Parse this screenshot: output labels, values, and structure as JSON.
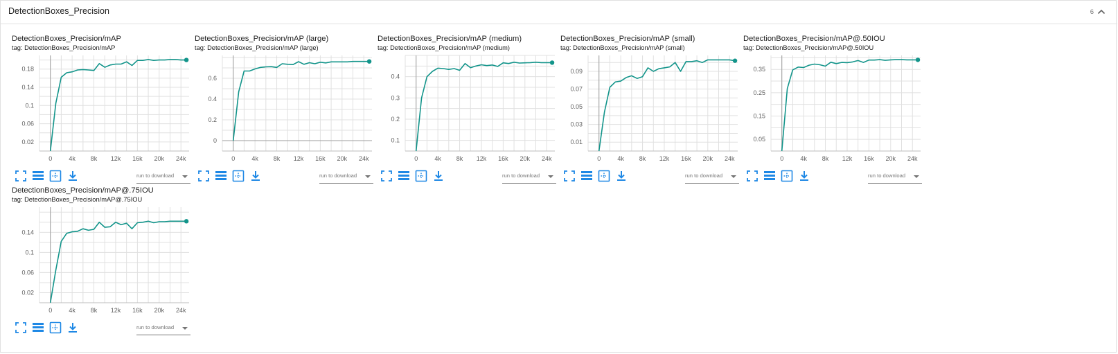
{
  "section": {
    "title": "DetectionBoxes_Precision",
    "card_count": "6"
  },
  "toolbar": {
    "run_select_placeholder": "run to download",
    "icons": [
      "fullscreen-icon",
      "data-table-icon",
      "fit-domain-icon",
      "download-icon"
    ]
  },
  "colors": {
    "series": "#12948a",
    "grid": "#e0e0e0",
    "accent": "#1e88e5"
  },
  "cards": [
    {
      "title": "DetectionBoxes_Precision/mAP",
      "tag": "tag: DetectionBoxes_Precision/mAP"
    },
    {
      "title": "DetectionBoxes_Precision/mAP (large)",
      "tag": "tag: DetectionBoxes_Precision/mAP (large)"
    },
    {
      "title": "DetectionBoxes_Precision/mAP (medium)",
      "tag": "tag: DetectionBoxes_Precision/mAP (medium)"
    },
    {
      "title": "DetectionBoxes_Precision/mAP (small)",
      "tag": "tag: DetectionBoxes_Precision/mAP (small)"
    },
    {
      "title": "DetectionBoxes_Precision/mAP@.50IOU",
      "tag": "tag: DetectionBoxes_Precision/mAP@.50IOU"
    },
    {
      "title": "DetectionBoxes_Precision/mAP@.75IOU",
      "tag": "tag: DetectionBoxes_Precision/mAP@.75IOU"
    }
  ],
  "chart_data": [
    {
      "type": "line",
      "xlim": [
        -2000,
        25500
      ],
      "ylim": [
        0,
        0.21
      ],
      "x_ticks": [
        0,
        4000,
        8000,
        12000,
        16000,
        20000,
        24000
      ],
      "x_tick_labels": [
        "0",
        "4k",
        "8k",
        "12k",
        "16k",
        "20k",
        "24k"
      ],
      "y_ticks": [
        0.02,
        0.06,
        0.1,
        0.14,
        0.18
      ],
      "y_tick_labels": [
        "0.02",
        "0.06",
        "0.1",
        "0.14",
        "0.18"
      ],
      "x": [
        0,
        1000,
        2000,
        3000,
        4000,
        5000,
        6000,
        7000,
        8000,
        9000,
        10000,
        11000,
        12000,
        13000,
        14000,
        15000,
        16000,
        17000,
        18000,
        19000,
        20000,
        21000,
        22000,
        23000,
        24000,
        25000
      ],
      "y": [
        0.0,
        0.105,
        0.162,
        0.172,
        0.174,
        0.178,
        0.179,
        0.178,
        0.177,
        0.192,
        0.184,
        0.189,
        0.191,
        0.191,
        0.196,
        0.188,
        0.199,
        0.199,
        0.201,
        0.199,
        0.2,
        0.2,
        0.201,
        0.201,
        0.2,
        0.2
      ]
    },
    {
      "type": "line",
      "xlim": [
        -2000,
        25500
      ],
      "ylim": [
        -0.1,
        0.82
      ],
      "x_ticks": [
        0,
        4000,
        8000,
        12000,
        16000,
        20000,
        24000
      ],
      "x_tick_labels": [
        "0",
        "4k",
        "8k",
        "12k",
        "16k",
        "20k",
        "24k"
      ],
      "y_ticks": [
        0,
        0.2,
        0.4,
        0.6
      ],
      "y_tick_labels": [
        "0",
        "0.2",
        "0.4",
        "0.6"
      ],
      "x": [
        0,
        1000,
        2000,
        3000,
        4000,
        5000,
        6000,
        7000,
        8000,
        9000,
        10000,
        11000,
        12000,
        13000,
        14000,
        15000,
        16000,
        17000,
        18000,
        19000,
        20000,
        21000,
        22000,
        23000,
        24000,
        25000
      ],
      "y": [
        0.0,
        0.47,
        0.67,
        0.67,
        0.69,
        0.705,
        0.71,
        0.712,
        0.705,
        0.74,
        0.735,
        0.732,
        0.76,
        0.735,
        0.75,
        0.74,
        0.755,
        0.748,
        0.758,
        0.758,
        0.758,
        0.758,
        0.762,
        0.762,
        0.762,
        0.762
      ]
    },
    {
      "type": "line",
      "xlim": [
        -2000,
        25500
      ],
      "ylim": [
        0.05,
        0.5
      ],
      "x_ticks": [
        0,
        4000,
        8000,
        12000,
        16000,
        20000,
        24000
      ],
      "x_tick_labels": [
        "0",
        "4k",
        "8k",
        "12k",
        "16k",
        "20k",
        "24k"
      ],
      "y_ticks": [
        0.1,
        0.2,
        0.3,
        0.4
      ],
      "y_tick_labels": [
        "0.1",
        "0.2",
        "0.3",
        "0.4"
      ],
      "x": [
        0,
        1000,
        2000,
        3000,
        4000,
        5000,
        6000,
        7000,
        8000,
        9000,
        10000,
        11000,
        12000,
        13000,
        14000,
        15000,
        16000,
        17000,
        18000,
        19000,
        20000,
        21000,
        22000,
        23000,
        24000,
        25000
      ],
      "y": [
        0.05,
        0.3,
        0.4,
        0.425,
        0.44,
        0.438,
        0.434,
        0.438,
        0.43,
        0.462,
        0.442,
        0.45,
        0.456,
        0.452,
        0.455,
        0.448,
        0.465,
        0.462,
        0.468,
        0.464,
        0.465,
        0.466,
        0.468,
        0.466,
        0.466,
        0.466
      ]
    },
    {
      "type": "line",
      "xlim": [
        -2000,
        25500
      ],
      "ylim": [
        0,
        0.108
      ],
      "x_ticks": [
        0,
        4000,
        8000,
        12000,
        16000,
        20000,
        24000
      ],
      "x_tick_labels": [
        "0",
        "4k",
        "8k",
        "12k",
        "16k",
        "20k",
        "24k"
      ],
      "y_ticks": [
        0.01,
        0.03,
        0.05,
        0.07,
        0.09
      ],
      "y_tick_labels": [
        "0.01",
        "0.03",
        "0.05",
        "0.07",
        "0.09"
      ],
      "x": [
        0,
        1000,
        2000,
        3000,
        4000,
        5000,
        6000,
        7000,
        8000,
        9000,
        10000,
        11000,
        12000,
        13000,
        14000,
        15000,
        16000,
        17000,
        18000,
        19000,
        20000,
        21000,
        22000,
        23000,
        24000,
        25000
      ],
      "y": [
        0.0,
        0.044,
        0.072,
        0.078,
        0.079,
        0.083,
        0.085,
        0.082,
        0.084,
        0.094,
        0.09,
        0.093,
        0.094,
        0.095,
        0.1,
        0.09,
        0.101,
        0.101,
        0.102,
        0.1,
        0.103,
        0.103,
        0.103,
        0.103,
        0.103,
        0.102
      ]
    },
    {
      "type": "line",
      "xlim": [
        -2000,
        25500
      ],
      "ylim": [
        0,
        0.41
      ],
      "x_ticks": [
        0,
        4000,
        8000,
        12000,
        16000,
        20000,
        24000
      ],
      "x_tick_labels": [
        "0",
        "4k",
        "8k",
        "12k",
        "16k",
        "20k",
        "24k"
      ],
      "y_ticks": [
        0.05,
        0.15,
        0.25,
        0.35
      ],
      "y_tick_labels": [
        "0.05",
        "0.15",
        "0.25",
        "0.35"
      ],
      "x": [
        0,
        1000,
        2000,
        3000,
        4000,
        5000,
        6000,
        7000,
        8000,
        9000,
        10000,
        11000,
        12000,
        13000,
        14000,
        15000,
        16000,
        17000,
        18000,
        19000,
        20000,
        21000,
        22000,
        23000,
        24000,
        25000
      ],
      "y": [
        0.0,
        0.268,
        0.348,
        0.36,
        0.358,
        0.368,
        0.373,
        0.37,
        0.364,
        0.381,
        0.375,
        0.38,
        0.379,
        0.382,
        0.388,
        0.38,
        0.39,
        0.39,
        0.392,
        0.389,
        0.391,
        0.392,
        0.392,
        0.391,
        0.391,
        0.391
      ]
    },
    {
      "type": "line",
      "xlim": [
        -2000,
        25500
      ],
      "ylim": [
        0,
        0.19
      ],
      "x_ticks": [
        0,
        4000,
        8000,
        12000,
        16000,
        20000,
        24000
      ],
      "x_tick_labels": [
        "0",
        "4k",
        "8k",
        "12k",
        "16k",
        "20k",
        "24k"
      ],
      "y_ticks": [
        0.02,
        0.06,
        0.1,
        0.14
      ],
      "y_tick_labels": [
        "0.02",
        "0.06",
        "0.1",
        "0.14"
      ],
      "x": [
        0,
        1000,
        2000,
        3000,
        4000,
        5000,
        6000,
        7000,
        8000,
        9000,
        10000,
        11000,
        12000,
        13000,
        14000,
        15000,
        16000,
        17000,
        18000,
        19000,
        20000,
        21000,
        22000,
        23000,
        24000,
        25000
      ],
      "y": [
        0.0,
        0.065,
        0.122,
        0.138,
        0.141,
        0.142,
        0.147,
        0.144,
        0.146,
        0.16,
        0.15,
        0.151,
        0.16,
        0.155,
        0.158,
        0.147,
        0.159,
        0.16,
        0.162,
        0.159,
        0.161,
        0.161,
        0.162,
        0.162,
        0.162,
        0.162
      ]
    }
  ]
}
